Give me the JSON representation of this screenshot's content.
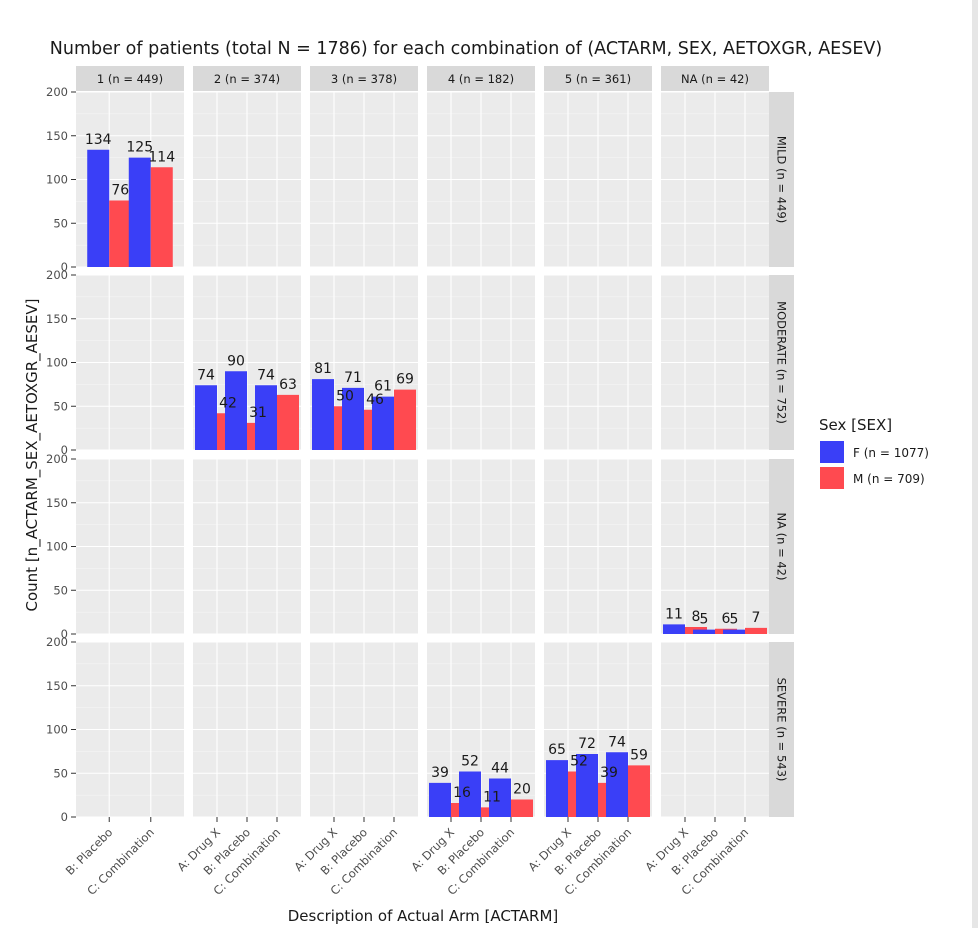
{
  "chart_data": {
    "type": "bar",
    "title": "Number of patients (total N = 1786) for each combination of (ACTARM, SEX, AETOXGR, AESEV)",
    "xlabel": "Description of Actual Arm [ACTARM]",
    "ylabel": "Count [n_ACTARM_SEX_AETOXGR_AESEV]",
    "ylim": [
      0,
      200
    ],
    "yticks": [
      0,
      50,
      100,
      150,
      200
    ],
    "legend": {
      "title": "Sex [SEX]",
      "position": "right",
      "entries": [
        {
          "key": "F",
          "label": "F (n = 1077)",
          "color": "#3a3ff7"
        },
        {
          "key": "M",
          "label": "M (n = 709)",
          "color": "#ff4a50"
        }
      ]
    },
    "col_facets": [
      {
        "label": "1 (n = 449)",
        "categories": [
          "B: Placebo",
          "C: Combination"
        ]
      },
      {
        "label": "2 (n = 374)",
        "categories": [
          "A: Drug X",
          "B: Placebo",
          "C: Combination"
        ]
      },
      {
        "label": "3 (n = 378)",
        "categories": [
          "A: Drug X",
          "B: Placebo",
          "C: Combination"
        ]
      },
      {
        "label": "4 (n = 182)",
        "categories": [
          "A: Drug X",
          "B: Placebo",
          "C: Combination"
        ]
      },
      {
        "label": "5 (n = 361)",
        "categories": [
          "A: Drug X",
          "B: Placebo",
          "C: Combination"
        ]
      },
      {
        "label": "NA (n = 42)",
        "categories": [
          "A: Drug X",
          "B: Placebo",
          "C: Combination"
        ]
      }
    ],
    "row_facets": [
      "MILD (n = 449)",
      "MODERATE (n = 752)",
      "NA (n = 42)",
      "SEVERE (n = 543)"
    ],
    "series": [
      {
        "name": "F",
        "values": [
          [
            [
              134,
              125
            ],
            [],
            [],
            [],
            [],
            []
          ],
          [
            [],
            [
              74,
              90,
              74
            ],
            [
              81,
              71,
              61
            ],
            [],
            [],
            []
          ],
          [
            [],
            [],
            [],
            [],
            [],
            [
              11,
              5,
              5
            ]
          ],
          [
            [],
            [],
            [],
            [
              39,
              52,
              44
            ],
            [
              65,
              72,
              74
            ],
            []
          ]
        ]
      },
      {
        "name": "M",
        "values": [
          [
            [
              76,
              114
            ],
            [],
            [],
            [],
            [],
            []
          ],
          [
            [],
            [
              42,
              31,
              63
            ],
            [
              50,
              46,
              69
            ],
            [],
            [],
            []
          ],
          [
            [],
            [],
            [],
            [],
            [],
            [
              8,
              6,
              7
            ]
          ],
          [
            [],
            [],
            [],
            [
              16,
              11,
              20
            ],
            [
              52,
              39,
              59
            ],
            []
          ]
        ]
      }
    ]
  }
}
